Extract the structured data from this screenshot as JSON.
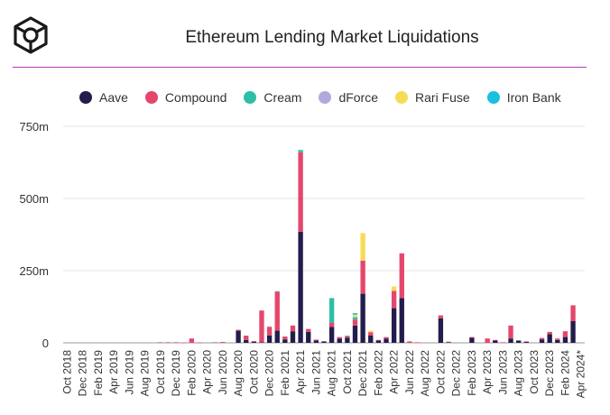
{
  "header": {
    "title": "Ethereum Lending Market Liquidations",
    "logo_icon": "cube-logo-icon"
  },
  "chart_data": {
    "type": "bar",
    "stacked": true,
    "title": "Ethereum Lending Market Liquidations",
    "xlabel": "",
    "ylabel": "",
    "ylim": [
      0,
      750000000
    ],
    "y_ticks": [
      0,
      250000000,
      500000000,
      750000000
    ],
    "y_tick_labels": [
      "0",
      "250m",
      "500m",
      "750m"
    ],
    "grid": true,
    "legend_position": "top",
    "categories": [
      "Oct 2018",
      "Nov 2018",
      "Dec 2018",
      "Jan 2019",
      "Feb 2019",
      "Mar 2019",
      "Apr 2019",
      "May 2019",
      "Jun 2019",
      "Jul 2019",
      "Aug 2019",
      "Sep 2019",
      "Oct 2019",
      "Nov 2019",
      "Dec 2019",
      "Jan 2020",
      "Feb 2020",
      "Mar 2020",
      "Apr 2020",
      "May 2020",
      "Jun 2020",
      "Jul 2020",
      "Aug 2020",
      "Sep 2020",
      "Oct 2020",
      "Nov 2020",
      "Dec 2020",
      "Jan 2021",
      "Feb 2021",
      "Mar 2021",
      "Apr 2021",
      "May 2021",
      "Jun 2021",
      "Jul 2021",
      "Aug 2021",
      "Sep 2021",
      "Oct 2021",
      "Nov 2021",
      "Dec 2021",
      "Jan 2022",
      "Feb 2022",
      "Mar 2022",
      "Apr 2022",
      "May 2022",
      "Jun 2022",
      "Jul 2022",
      "Aug 2022",
      "Sep 2022",
      "Oct 2022",
      "Nov 2022",
      "Dec 2022",
      "Jan 2023",
      "Feb 2023",
      "Mar 2023",
      "Apr 2023",
      "May 2023",
      "Jun 2023",
      "Jul 2023",
      "Aug 2023",
      "Sep 2023",
      "Oct 2023",
      "Nov 2023",
      "Dec 2023",
      "Jan 2024",
      "Feb 2024",
      "Mar 2024",
      "Apr 2024*"
    ],
    "x_tick_labels": [
      "Oct 2018",
      "Dec 2018",
      "Feb 2019",
      "Apr 2019",
      "Jun 2019",
      "Aug 2019",
      "Oct 2019",
      "Dec 2019",
      "Feb 2020",
      "Apr 2020",
      "Jun 2020",
      "Aug 2020",
      "Oct 2020",
      "Dec 2020",
      "Feb 2021",
      "Apr 2021",
      "Jun 2021",
      "Aug 2021",
      "Oct 2021",
      "Dec 2021",
      "Feb 2022",
      "Apr 2022",
      "Jun 2022",
      "Aug 2022",
      "Oct 2022",
      "Dec 2022",
      "Feb 2023",
      "Apr 2023",
      "Jun 2023",
      "Aug 2023",
      "Oct 2023",
      "Dec 2023",
      "Feb 2024",
      "Apr 2024*"
    ],
    "series": [
      {
        "name": "Aave",
        "color": "#231d4c",
        "values": [
          0,
          0,
          0,
          0,
          0,
          0,
          0,
          0,
          0,
          0,
          0,
          0,
          0,
          0,
          0,
          0,
          0,
          0,
          0,
          0,
          0,
          0,
          42000000,
          10000000,
          4000000,
          2000000,
          25000000,
          42000000,
          12000000,
          40000000,
          385000000,
          38000000,
          8000000,
          5000000,
          55000000,
          15000000,
          18000000,
          60000000,
          170000000,
          25000000,
          8000000,
          15000000,
          120000000,
          155000000,
          0,
          0,
          0,
          0,
          85000000,
          2000000,
          0,
          0,
          18000000,
          0,
          0,
          8000000,
          0,
          15000000,
          8000000,
          3000000,
          0,
          12000000,
          30000000,
          10000000,
          20000000,
          75000000,
          0
        ]
      },
      {
        "name": "Compound",
        "color": "#e5476c",
        "values": [
          0,
          0,
          0,
          0,
          0,
          0,
          0,
          0,
          0,
          0,
          0,
          0,
          2000000,
          2000000,
          2000000,
          1000000,
          15000000,
          1000000,
          0,
          2000000,
          3000000,
          0,
          3000000,
          15000000,
          2000000,
          110000000,
          30000000,
          135000000,
          10000000,
          20000000,
          275000000,
          10000000,
          3000000,
          0,
          15000000,
          5000000,
          5000000,
          20000000,
          115000000,
          12000000,
          2000000,
          5000000,
          60000000,
          155000000,
          5000000,
          2000000,
          0,
          0,
          10000000,
          2000000,
          0,
          0,
          2000000,
          0,
          15000000,
          2000000,
          2000000,
          45000000,
          0,
          2000000,
          0,
          5000000,
          8000000,
          5000000,
          20000000,
          55000000,
          0
        ]
      },
      {
        "name": "Cream",
        "color": "#2dbfa6",
        "values": [
          0,
          0,
          0,
          0,
          0,
          0,
          0,
          0,
          0,
          0,
          0,
          0,
          0,
          0,
          0,
          0,
          0,
          0,
          0,
          0,
          0,
          0,
          0,
          0,
          0,
          0,
          0,
          2000000,
          0,
          0,
          8000000,
          0,
          0,
          0,
          85000000,
          0,
          2000000,
          8000000,
          0,
          0,
          0,
          0,
          0,
          0,
          0,
          0,
          0,
          0,
          0,
          0,
          0,
          0,
          0,
          0,
          0,
          0,
          0,
          0,
          0,
          0,
          0,
          0,
          0,
          0,
          0,
          0,
          0
        ]
      },
      {
        "name": "dForce",
        "color": "#b3a7dc",
        "values": [
          0,
          0,
          0,
          0,
          0,
          0,
          0,
          0,
          0,
          0,
          0,
          0,
          0,
          0,
          0,
          0,
          0,
          0,
          0,
          0,
          0,
          0,
          0,
          0,
          0,
          0,
          2000000,
          0,
          0,
          0,
          0,
          0,
          0,
          0,
          0,
          0,
          0,
          2000000,
          0,
          0,
          0,
          0,
          0,
          0,
          0,
          0,
          0,
          0,
          0,
          0,
          0,
          0,
          0,
          0,
          0,
          0,
          0,
          0,
          0,
          0,
          0,
          0,
          0,
          0,
          0,
          0,
          0
        ]
      },
      {
        "name": "Rari Fuse",
        "color": "#f6db57",
        "values": [
          0,
          0,
          0,
          0,
          0,
          0,
          0,
          0,
          0,
          0,
          0,
          0,
          0,
          0,
          0,
          0,
          0,
          0,
          0,
          0,
          0,
          0,
          0,
          0,
          0,
          0,
          0,
          0,
          0,
          0,
          0,
          0,
          0,
          0,
          0,
          0,
          0,
          8000000,
          95000000,
          5000000,
          0,
          0,
          15000000,
          0,
          0,
          0,
          0,
          0,
          0,
          0,
          0,
          0,
          0,
          0,
          0,
          0,
          0,
          0,
          0,
          0,
          0,
          0,
          0,
          0,
          0,
          0,
          0
        ]
      },
      {
        "name": "Iron Bank",
        "color": "#1bbfe0",
        "values": [
          0,
          0,
          0,
          0,
          0,
          0,
          0,
          0,
          0,
          0,
          0,
          0,
          0,
          0,
          0,
          0,
          0,
          0,
          0,
          0,
          0,
          0,
          0,
          0,
          0,
          0,
          0,
          0,
          0,
          0,
          0,
          0,
          0,
          0,
          0,
          0,
          0,
          5000000,
          0,
          0,
          0,
          0,
          0,
          0,
          0,
          0,
          0,
          0,
          0,
          0,
          0,
          0,
          0,
          0,
          0,
          0,
          0,
          0,
          0,
          0,
          0,
          0,
          0,
          0,
          0,
          0,
          0
        ]
      }
    ]
  }
}
